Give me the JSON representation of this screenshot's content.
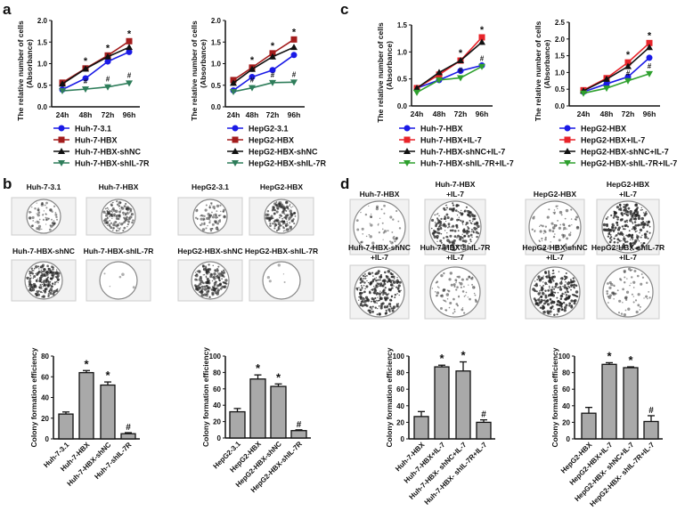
{
  "panel_labels": [
    "a",
    "b",
    "c",
    "d"
  ],
  "chart_data": [
    {
      "id": "a1",
      "type": "line",
      "ylabel": "The relative number of cells",
      "ylabel2": "(Absorbance)",
      "categories": [
        "24h",
        "48h",
        "72h",
        "96h"
      ],
      "ylim": [
        0,
        2.0
      ],
      "yticks": [
        "0.0",
        "0.5",
        "1.0",
        "1.5",
        "2.0"
      ],
      "series": [
        {
          "name": "Huh-7-3.1",
          "color": "#1a1ae6",
          "marker": "diamond",
          "values": [
            0.4,
            0.66,
            1.05,
            1.27
          ]
        },
        {
          "name": "Huh-7-HBX",
          "color": "#a31c1c",
          "marker": "square",
          "values": [
            0.56,
            0.89,
            1.19,
            1.52
          ]
        },
        {
          "name": "Huh-7-HBX-shNC",
          "color": "#111111",
          "marker": "triangle",
          "values": [
            0.53,
            0.88,
            1.16,
            1.38
          ]
        },
        {
          "name": "Huh-7-HBX-shIL-7R",
          "color": "#2e7d5a",
          "marker": "tri-down",
          "values": [
            0.37,
            0.41,
            0.46,
            0.55
          ]
        }
      ],
      "star": [
        "",
        "*",
        "*",
        "*"
      ],
      "hash": [
        "",
        "#",
        "#",
        "#"
      ]
    },
    {
      "id": "a2",
      "type": "line",
      "ylabel": "The relative number of cells",
      "ylabel2": "(Absorbance)",
      "categories": [
        "24h",
        "48h",
        "72h",
        "96h"
      ],
      "ylim": [
        0,
        2.0
      ],
      "yticks": [
        "0.0",
        "0.5",
        "1.0",
        "1.5",
        "2.0"
      ],
      "series": [
        {
          "name": "HepG2-3.1",
          "color": "#1a1ae6",
          "marker": "diamond",
          "values": [
            0.38,
            0.69,
            0.85,
            1.2
          ]
        },
        {
          "name": "HepG2-HBX",
          "color": "#a31c1c",
          "marker": "square",
          "values": [
            0.62,
            0.91,
            1.24,
            1.56
          ]
        },
        {
          "name": "HepG2-HBX-shNC",
          "color": "#111111",
          "marker": "triangle",
          "values": [
            0.55,
            0.87,
            1.16,
            1.38
          ]
        },
        {
          "name": "HepG2-HBX-shIL-7R",
          "color": "#2e7d5a",
          "marker": "tri-down",
          "values": [
            0.35,
            0.44,
            0.56,
            0.57
          ]
        }
      ],
      "star": [
        "",
        "*",
        "*",
        "*"
      ],
      "hash": [
        "",
        "#",
        "#",
        "#"
      ]
    },
    {
      "id": "c1",
      "type": "line",
      "ylabel": "The relative number of cells",
      "ylabel2": "(Absorbance)",
      "categories": [
        "24h",
        "48h",
        "72h",
        "96h"
      ],
      "ylim": [
        0,
        1.5
      ],
      "yticks": [
        "0.0",
        "0.5",
        "1.0",
        "1.5"
      ],
      "series": [
        {
          "name": "Huh-7-HBX",
          "color": "#1a1ae6",
          "marker": "diamond",
          "values": [
            0.33,
            0.48,
            0.65,
            0.75
          ]
        },
        {
          "name": "Huh-7-HBX+IL-7",
          "color": "#e8242a",
          "marker": "square",
          "values": [
            0.33,
            0.58,
            0.84,
            1.27
          ]
        },
        {
          "name": "Huh-7-HBX-shNC+IL-7",
          "color": "#111111",
          "marker": "triangle",
          "values": [
            0.33,
            0.62,
            0.84,
            1.18
          ]
        },
        {
          "name": "Huh-7-HBX-shIL-7R+IL-7",
          "color": "#2ea02e",
          "marker": "tri-down",
          "values": [
            0.25,
            0.48,
            0.52,
            0.73
          ]
        }
      ],
      "star": [
        "",
        "",
        "*",
        "*"
      ],
      "hash": [
        "",
        "",
        "#",
        "#"
      ]
    },
    {
      "id": "c2",
      "type": "line",
      "ylabel": "The relative number of cells",
      "ylabel2": "(Absorbance)",
      "categories": [
        "24h",
        "48h",
        "72h",
        "96h"
      ],
      "ylim": [
        0,
        2.5
      ],
      "yticks": [
        "0.0",
        "0.5",
        "1.0",
        "1.5",
        "2.0",
        "2.5"
      ],
      "series": [
        {
          "name": "HepG2-HBX",
          "color": "#1a1ae6",
          "marker": "diamond",
          "values": [
            0.42,
            0.66,
            0.87,
            1.44
          ]
        },
        {
          "name": "HepG2-HBX+IL-7",
          "color": "#e8242a",
          "marker": "square",
          "values": [
            0.47,
            0.83,
            1.3,
            1.88
          ]
        },
        {
          "name": "HepG2-HBX-shNC+IL-7",
          "color": "#111111",
          "marker": "triangle",
          "values": [
            0.45,
            0.8,
            1.18,
            1.75
          ]
        },
        {
          "name": "HepG2-HBX-shIL-7R+IL-7",
          "color": "#2ea02e",
          "marker": "tri-down",
          "values": [
            0.38,
            0.53,
            0.75,
            0.96
          ]
        }
      ],
      "star": [
        "",
        "",
        "*",
        "*"
      ],
      "hash": [
        "",
        "",
        "#",
        "#"
      ]
    },
    {
      "id": "b1",
      "type": "bar",
      "ylabel": "Colony formation efficiency",
      "categories": [
        "Huh-7-3.1",
        "Huh-7-HBX",
        "Huh-7-HBX-shNC",
        "Huh-7-shIL-7R"
      ],
      "values": [
        24,
        64,
        52,
        5
      ],
      "errors": [
        2,
        2,
        3,
        1
      ],
      "ylim": [
        0,
        80
      ],
      "yticks": [
        "0",
        "20",
        "40",
        "60",
        "80"
      ],
      "annotations": [
        "",
        "*",
        "*",
        "#"
      ]
    },
    {
      "id": "b2",
      "type": "bar",
      "ylabel": "Colony formation efficiency",
      "categories": [
        "HepG2-3.1",
        "HepG2-HBX",
        "HepG2-HBX-shNC",
        "HepG2-HBX-shIL-7R"
      ],
      "values": [
        32,
        72,
        63,
        9
      ],
      "errors": [
        4,
        5,
        3,
        1
      ],
      "ylim": [
        0,
        100
      ],
      "yticks": [
        "0",
        "20",
        "40",
        "60",
        "80",
        "100"
      ],
      "annotations": [
        "",
        "*",
        "*",
        "#"
      ]
    },
    {
      "id": "d1",
      "type": "bar",
      "ylabel": "Colony formation efficiency",
      "categories": [
        "Huh-7-HBX",
        "Huh-7-HBX+IL-7",
        "Huh-7-HBX- shNC+IL-7",
        "Huh-7-HBX- shIL-7R+IL-7"
      ],
      "values": [
        27,
        87,
        82,
        20
      ],
      "errors": [
        6,
        2,
        11,
        3
      ],
      "ylim": [
        0,
        100
      ],
      "yticks": [
        "0",
        "20",
        "40",
        "60",
        "80",
        "100"
      ],
      "annotations": [
        "",
        "*",
        "*",
        "#"
      ]
    },
    {
      "id": "d2",
      "type": "bar",
      "ylabel": "Colony formation efficiency",
      "categories": [
        "HepG2-HBX",
        "HepG2-HBX+IL-7",
        "HepG2-HBX- shNC+IL-7",
        "HepG2-HBX- shIL-7R+IL-7"
      ],
      "values": [
        31,
        90,
        86,
        21
      ],
      "errors": [
        7,
        2,
        1,
        7
      ],
      "ylim": [
        0,
        100
      ],
      "yticks": [
        "0",
        "20",
        "40",
        "60",
        "80",
        "100"
      ],
      "annotations": [
        "",
        "*",
        "*",
        "#"
      ]
    }
  ],
  "colony_plates": {
    "b": [
      [
        "Huh-7-3.1"
      ],
      [
        "Huh-7-HBX"
      ],
      [
        "HepG2-3.1"
      ],
      [
        "HepG2-HBX"
      ],
      [
        "Huh-7-HBX-shNC"
      ],
      [
        "Huh-7-HBX-shIL-7R"
      ],
      [
        "HepG2-HBX-shNC"
      ],
      [
        "HepG2-HBX-shIL-7R"
      ]
    ],
    "b_density": [
      0.25,
      0.45,
      0.3,
      0.5,
      0.7,
      0.02,
      0.6,
      0.02
    ],
    "d": [
      [
        "Huh-7-HBX"
      ],
      [
        "Huh-7-HBX",
        "+IL-7"
      ],
      [
        "HepG2-HBX"
      ],
      [
        "HepG2-HBX",
        "+IL-7"
      ],
      [
        "Huh-7-HBX-shNC",
        "+IL-7"
      ],
      [
        "Huh-7-HBX-shIL-7R",
        "+IL-7"
      ],
      [
        "HepG2-HBX-shNC",
        "+IL-7"
      ],
      [
        "HepG2-HBX-shIL-7R",
        "+IL-7"
      ]
    ],
    "d_density": [
      0.2,
      0.75,
      0.3,
      0.85,
      0.85,
      0.3,
      0.85,
      0.25
    ]
  }
}
